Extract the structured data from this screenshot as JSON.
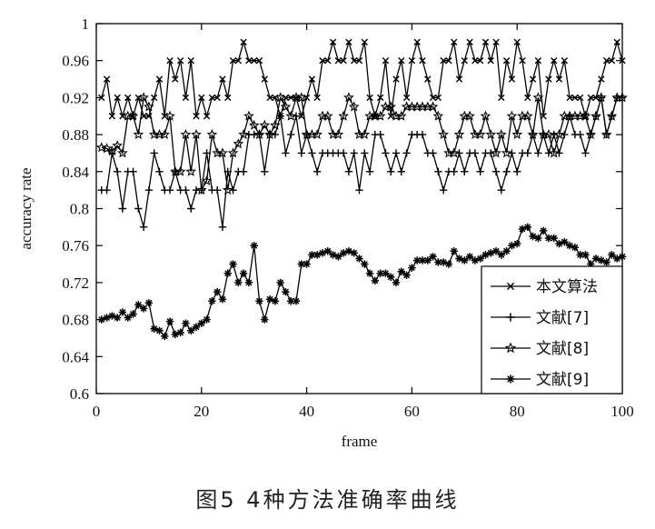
{
  "caption": "图5   4种方法准确率曲线",
  "chart_data": {
    "type": "line",
    "xlabel": "frame",
    "ylabel": "accuracy rate",
    "xlim": [
      0,
      100
    ],
    "ylim": [
      0.6,
      1.0
    ],
    "xticks": [
      "0",
      "20",
      "40",
      "60",
      "80",
      "100"
    ],
    "yticks": [
      "0.6",
      "0.64",
      "0.68",
      "0.72",
      "0.76",
      "0.8",
      "0.84",
      "0.88",
      "0.92",
      "0.96",
      "1"
    ],
    "legend_position": "bottom-right",
    "x": [
      1,
      2,
      3,
      4,
      5,
      6,
      7,
      8,
      9,
      10,
      11,
      12,
      13,
      14,
      15,
      16,
      17,
      18,
      19,
      20,
      21,
      22,
      23,
      24,
      25,
      26,
      27,
      28,
      29,
      30,
      31,
      32,
      33,
      34,
      35,
      36,
      37,
      38,
      39,
      40,
      41,
      42,
      43,
      44,
      45,
      46,
      47,
      48,
      49,
      50,
      51,
      52,
      53,
      54,
      55,
      56,
      57,
      58,
      59,
      60,
      61,
      62,
      63,
      64,
      65,
      66,
      67,
      68,
      69,
      70,
      71,
      72,
      73,
      74,
      75,
      76,
      77,
      78,
      79,
      80,
      81,
      82,
      83,
      84,
      85,
      86,
      87,
      88,
      89,
      90,
      91,
      92,
      93,
      94,
      95,
      96,
      97,
      98,
      99,
      100
    ],
    "series": [
      {
        "name": "本文算法",
        "marker": "x",
        "values": [
          0.92,
          0.94,
          0.9,
          0.92,
          0.9,
          0.92,
          0.9,
          0.92,
          0.9,
          0.9,
          0.92,
          0.94,
          0.9,
          0.96,
          0.94,
          0.96,
          0.92,
          0.96,
          0.9,
          0.92,
          0.9,
          0.92,
          0.92,
          0.94,
          0.92,
          0.96,
          0.96,
          0.98,
          0.96,
          0.96,
          0.96,
          0.94,
          0.92,
          0.92,
          0.9,
          0.92,
          0.92,
          0.92,
          0.9,
          0.92,
          0.94,
          0.92,
          0.96,
          0.96,
          0.98,
          0.96,
          0.96,
          0.98,
          0.96,
          0.96,
          0.98,
          0.92,
          0.9,
          0.92,
          0.96,
          0.9,
          0.94,
          0.96,
          0.92,
          0.96,
          0.98,
          0.96,
          0.94,
          0.92,
          0.92,
          0.96,
          0.96,
          0.98,
          0.94,
          0.96,
          0.98,
          0.96,
          0.96,
          0.98,
          0.96,
          0.98,
          0.92,
          0.96,
          0.94,
          0.98,
          0.96,
          0.92,
          0.94,
          0.96,
          0.9,
          0.94,
          0.96,
          0.94,
          0.96,
          0.92,
          0.92,
          0.92,
          0.9,
          0.92,
          0.92,
          0.94,
          0.96,
          0.96,
          0.98,
          0.96
        ]
      },
      {
        "name": "文献[7]",
        "marker": "+",
        "values": [
          0.82,
          0.82,
          0.86,
          0.84,
          0.8,
          0.84,
          0.84,
          0.8,
          0.78,
          0.82,
          0.86,
          0.84,
          0.82,
          0.82,
          0.84,
          0.82,
          0.82,
          0.8,
          0.82,
          0.82,
          0.86,
          0.82,
          0.82,
          0.78,
          0.84,
          0.82,
          0.84,
          0.84,
          0.88,
          0.88,
          0.88,
          0.84,
          0.88,
          0.88,
          0.9,
          0.86,
          0.88,
          0.9,
          0.86,
          0.88,
          0.86,
          0.84,
          0.86,
          0.86,
          0.86,
          0.86,
          0.86,
          0.84,
          0.86,
          0.82,
          0.86,
          0.84,
          0.88,
          0.88,
          0.86,
          0.84,
          0.86,
          0.84,
          0.86,
          0.88,
          0.88,
          0.88,
          0.86,
          0.86,
          0.84,
          0.82,
          0.84,
          0.84,
          0.86,
          0.84,
          0.86,
          0.86,
          0.84,
          0.86,
          0.86,
          0.84,
          0.82,
          0.84,
          0.86,
          0.84,
          0.86,
          0.86,
          0.88,
          0.86,
          0.88,
          0.86,
          0.88,
          0.86,
          0.88,
          0.9,
          0.88,
          0.88,
          0.86,
          0.88,
          0.9,
          0.92,
          0.88,
          0.9,
          0.92,
          0.92
        ]
      },
      {
        "name": "文献[8]",
        "marker": "star-open",
        "values": [
          0.866,
          0.865,
          0.862,
          0.868,
          0.86,
          0.9,
          0.9,
          0.88,
          0.92,
          0.91,
          0.88,
          0.88,
          0.88,
          0.9,
          0.84,
          0.84,
          0.88,
          0.84,
          0.88,
          0.82,
          0.83,
          0.88,
          0.86,
          0.86,
          0.82,
          0.86,
          0.87,
          0.88,
          0.9,
          0.89,
          0.88,
          0.89,
          0.88,
          0.89,
          0.92,
          0.91,
          0.9,
          0.92,
          0.92,
          0.88,
          0.88,
          0.88,
          0.9,
          0.9,
          0.88,
          0.88,
          0.9,
          0.92,
          0.91,
          0.88,
          0.88,
          0.9,
          0.9,
          0.9,
          0.91,
          0.91,
          0.9,
          0.9,
          0.91,
          0.91,
          0.91,
          0.91,
          0.91,
          0.91,
          0.9,
          0.88,
          0.86,
          0.86,
          0.88,
          0.9,
          0.9,
          0.88,
          0.88,
          0.9,
          0.88,
          0.86,
          0.88,
          0.86,
          0.9,
          0.88,
          0.9,
          0.9,
          0.88,
          0.92,
          0.88,
          0.88,
          0.86,
          0.88,
          0.9,
          0.9,
          0.9,
          0.9,
          0.9,
          0.88,
          0.9,
          0.92,
          0.88,
          0.9,
          0.92,
          0.92
        ]
      },
      {
        "name": "文献[9]",
        "marker": "star",
        "values": [
          0.68,
          0.682,
          0.684,
          0.682,
          0.688,
          0.682,
          0.686,
          0.696,
          0.692,
          0.698,
          0.67,
          0.668,
          0.662,
          0.678,
          0.664,
          0.666,
          0.676,
          0.668,
          0.672,
          0.676,
          0.68,
          0.7,
          0.71,
          0.702,
          0.73,
          0.74,
          0.72,
          0.73,
          0.72,
          0.76,
          0.7,
          0.68,
          0.702,
          0.7,
          0.72,
          0.71,
          0.7,
          0.7,
          0.74,
          0.74,
          0.75,
          0.75,
          0.752,
          0.754,
          0.75,
          0.748,
          0.752,
          0.754,
          0.752,
          0.746,
          0.74,
          0.73,
          0.722,
          0.73,
          0.73,
          0.726,
          0.72,
          0.732,
          0.728,
          0.736,
          0.744,
          0.744,
          0.744,
          0.748,
          0.742,
          0.742,
          0.74,
          0.754,
          0.746,
          0.744,
          0.748,
          0.744,
          0.746,
          0.75,
          0.752,
          0.754,
          0.75,
          0.754,
          0.76,
          0.762,
          0.778,
          0.78,
          0.77,
          0.768,
          0.776,
          0.768,
          0.768,
          0.762,
          0.764,
          0.76,
          0.758,
          0.75,
          0.75,
          0.74,
          0.746,
          0.744,
          0.742,
          0.75,
          0.746,
          0.748
        ]
      }
    ]
  }
}
